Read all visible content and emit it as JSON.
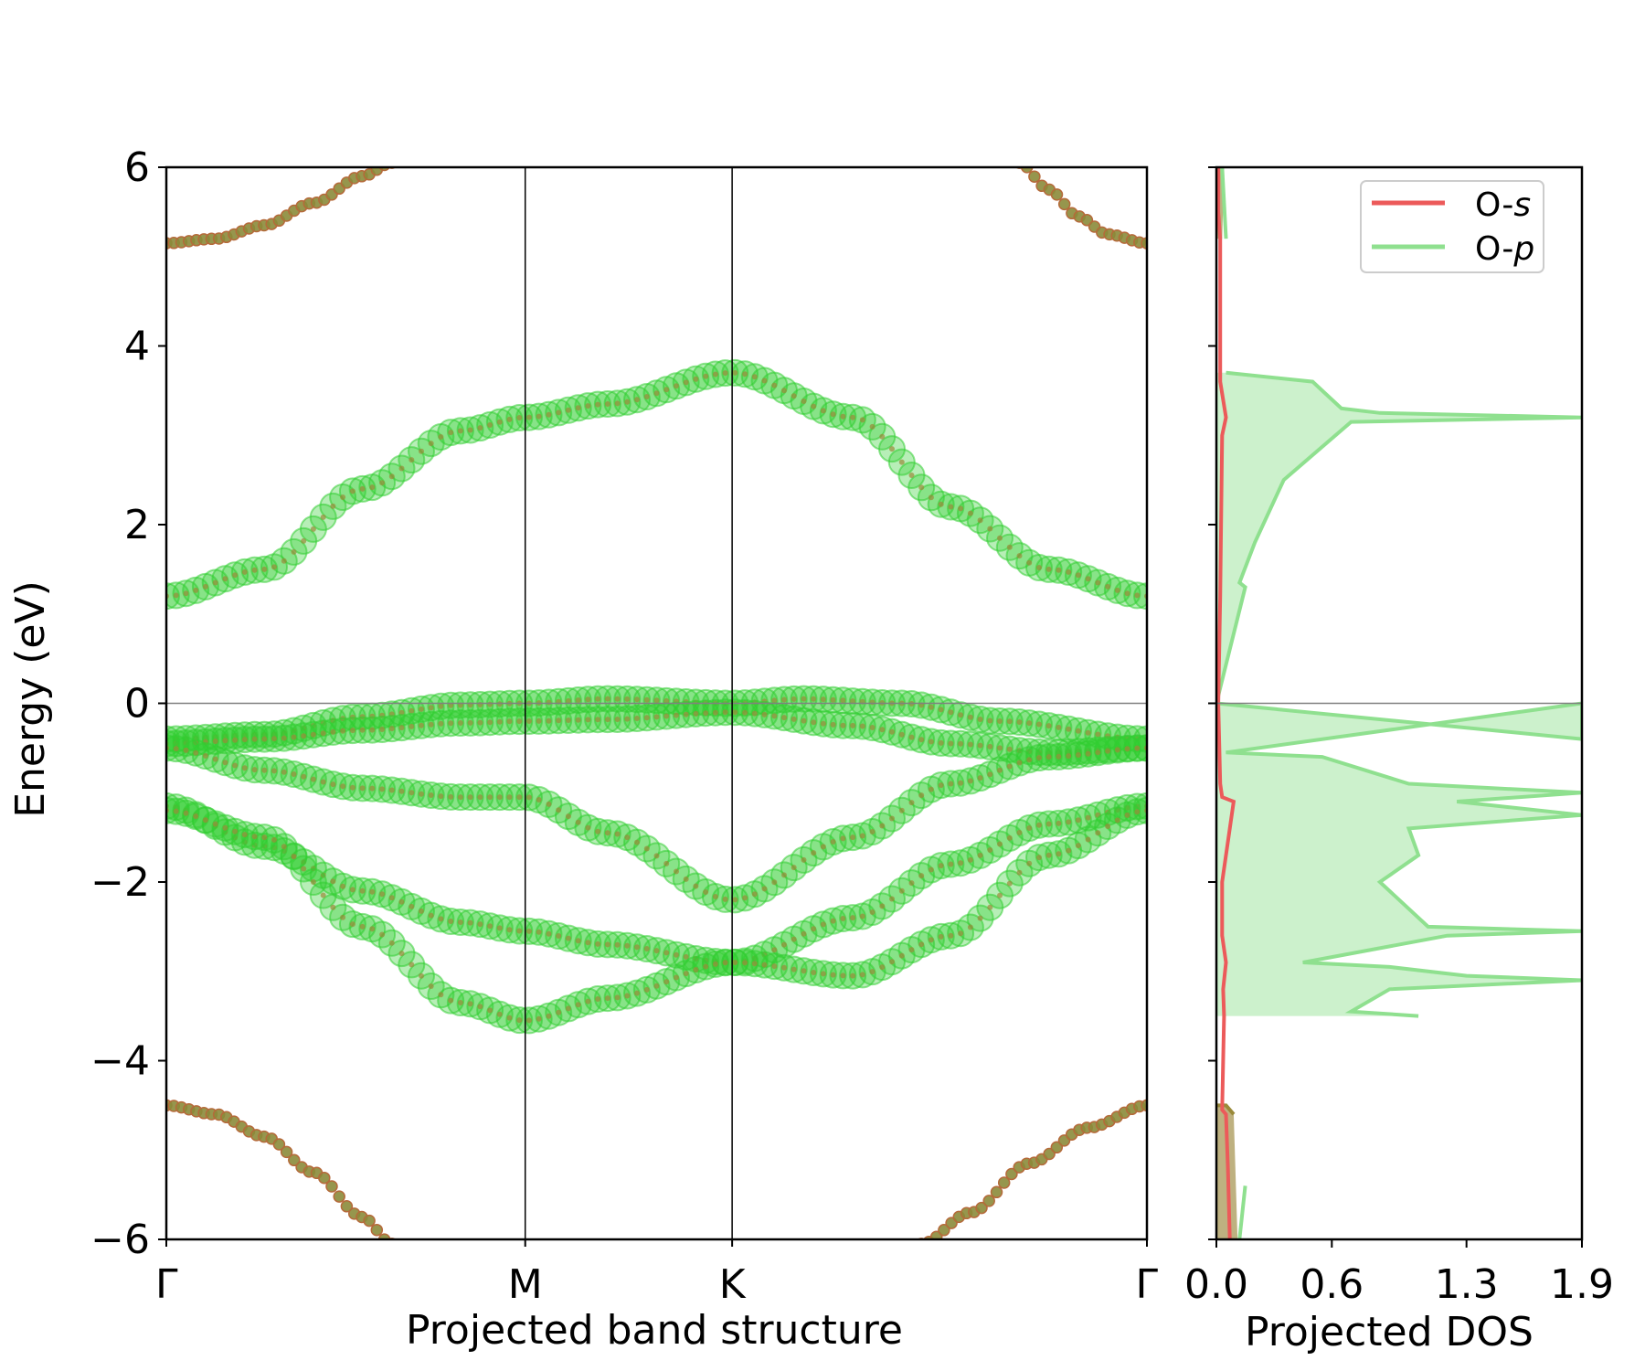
{
  "chart_data": [
    {
      "type": "scatter",
      "panel": "band-structure",
      "xlabel": "Projected band structure",
      "ylabel": "Energy (eV)",
      "ylim": [
        -6,
        6
      ],
      "yticks": [
        6,
        4,
        2,
        0,
        -2,
        -4,
        -6
      ],
      "ytick_labels": [
        "6",
        "4",
        "2",
        "0",
        "−2",
        "−4",
        "−6"
      ],
      "kpoints": [
        {
          "label": "Γ",
          "x": 0.0
        },
        {
          "label": "M",
          "x": 0.366
        },
        {
          "label": "K",
          "x": 0.577
        },
        {
          "label": "Γ",
          "x": 1.0
        }
      ],
      "fermi_level": 0,
      "grid": false,
      "series": [
        {
          "name": "O-p",
          "color": "#32cd32",
          "marker": "large open circle",
          "bands": [
            {
              "x": [
                0,
                0.1,
                0.2,
                0.3,
                0.366,
                0.45,
                0.577,
                0.7,
                0.8,
                0.9,
                1.0
              ],
              "y": [
                1.2,
                1.5,
                2.4,
                3.05,
                3.2,
                3.35,
                3.7,
                3.2,
                2.2,
                1.5,
                1.2
              ]
            },
            {
              "x": [
                0,
                0.1,
                0.2,
                0.3,
                0.366,
                0.45,
                0.577,
                0.65,
                0.75,
                0.85,
                1.0
              ],
              "y": [
                -0.4,
                -0.35,
                -0.15,
                -0.02,
                0.0,
                0.05,
                0.0,
                0.05,
                0.0,
                -0.2,
                -0.4
              ]
            },
            {
              "x": [
                0,
                0.1,
                0.2,
                0.3,
                0.366,
                0.45,
                0.577,
                0.7,
                0.8,
                0.9,
                1.0
              ],
              "y": [
                -0.45,
                -0.4,
                -0.3,
                -0.22,
                -0.2,
                -0.18,
                -0.1,
                -0.25,
                -0.45,
                -0.55,
                -0.5
              ]
            },
            {
              "x": [
                0,
                0.1,
                0.2,
                0.3,
                0.366,
                0.45,
                0.577,
                0.7,
                0.8,
                0.9,
                1.0
              ],
              "y": [
                -0.5,
                -0.75,
                -0.95,
                -1.05,
                -1.05,
                -1.45,
                -2.2,
                -1.5,
                -0.9,
                -0.6,
                -0.5
              ]
            },
            {
              "x": [
                0,
                0.1,
                0.2,
                0.3,
                0.366,
                0.45,
                0.577,
                0.7,
                0.8,
                0.9,
                1.0
              ],
              "y": [
                -1.15,
                -1.6,
                -2.1,
                -2.45,
                -2.55,
                -2.7,
                -2.9,
                -2.4,
                -1.8,
                -1.35,
                -1.15
              ]
            },
            {
              "x": [
                0,
                0.1,
                0.2,
                0.3,
                0.366,
                0.45,
                0.577,
                0.7,
                0.8,
                0.9,
                1.0
              ],
              "y": [
                -1.2,
                -1.5,
                -2.5,
                -3.35,
                -3.55,
                -3.3,
                -2.9,
                -3.05,
                -2.6,
                -1.7,
                -1.2
              ]
            }
          ]
        },
        {
          "name": "O-s",
          "color": "#8b8b3a",
          "marker": "small filled circle",
          "bands": [
            {
              "x": [
                0,
                0.05,
                0.1,
                0.15,
                0.2,
                0.23
              ],
              "y": [
                5.15,
                5.2,
                5.35,
                5.6,
                5.9,
                6.05
              ]
            },
            {
              "x": [
                0.87,
                0.9,
                0.93,
                0.96,
                1.0
              ],
              "y": [
                6.05,
                5.75,
                5.45,
                5.25,
                5.15
              ]
            },
            {
              "x": [
                0,
                0.05,
                0.1,
                0.15,
                0.2,
                0.23
              ],
              "y": [
                -4.5,
                -4.6,
                -4.85,
                -5.25,
                -5.75,
                -6.05
              ]
            },
            {
              "x": [
                0.77,
                0.82,
                0.88,
                0.94,
                1.0
              ],
              "y": [
                -6.05,
                -5.7,
                -5.15,
                -4.75,
                -4.5
              ]
            }
          ]
        }
      ]
    },
    {
      "type": "area",
      "panel": "pdos",
      "xlabel": "Projected DOS",
      "xlim": [
        0,
        1.9
      ],
      "xticks": [
        0.0,
        0.6,
        1.3,
        1.9
      ],
      "xtick_labels": [
        "0.0",
        "0.6",
        "1.3",
        "1.9"
      ],
      "ylim": [
        -6,
        6
      ],
      "legend_position": "top-right",
      "series": [
        {
          "name": "O-s",
          "legend_label": "O-",
          "legend_italic": "s",
          "color": "#ec5a5a",
          "energy": [
            -6,
            -5.2,
            -4.6,
            -4.55,
            -3.5,
            -3.2,
            -2.9,
            -2.6,
            -2.0,
            -1.1,
            -1.05,
            -0.9,
            0.0,
            1.2,
            3.0,
            3.2,
            3.6,
            5.2,
            5.5,
            6.0
          ],
          "dos": [
            0.07,
            0.06,
            0.05,
            0.03,
            0.04,
            0.035,
            0.05,
            0.03,
            0.03,
            0.09,
            0.03,
            0.02,
            0.01,
            0.02,
            0.03,
            0.05,
            0.02,
            0.02,
            0.01,
            0.01
          ]
        },
        {
          "name": "O-p",
          "legend_label": "O-",
          "legend_italic": "p",
          "color": "#8fe08f",
          "energy": [
            -3.5,
            -3.45,
            -3.2,
            -3.1,
            -3.05,
            -2.95,
            -2.9,
            -2.6,
            -2.55,
            -2.5,
            -2.0,
            -1.7,
            -1.4,
            -1.25,
            -1.1,
            -1.0,
            -0.9,
            -0.6,
            -0.55,
            0.0,
            -0.4,
            0.0,
            1.3,
            1.35,
            1.8,
            2.5,
            3.15,
            3.2,
            3.25,
            3.3,
            3.5,
            3.6,
            3.7
          ],
          "dos": [
            1.05,
            0.7,
            0.9,
            1.9,
            1.3,
            0.9,
            0.45,
            1.2,
            1.9,
            1.1,
            0.85,
            1.05,
            1.0,
            1.9,
            1.25,
            1.9,
            1.0,
            0.55,
            0.05,
            1.9,
            1.9,
            0.0,
            0.15,
            0.12,
            0.2,
            0.35,
            0.7,
            1.9,
            0.85,
            0.65,
            0.55,
            0.5,
            0.05
          ]
        }
      ]
    }
  ]
}
